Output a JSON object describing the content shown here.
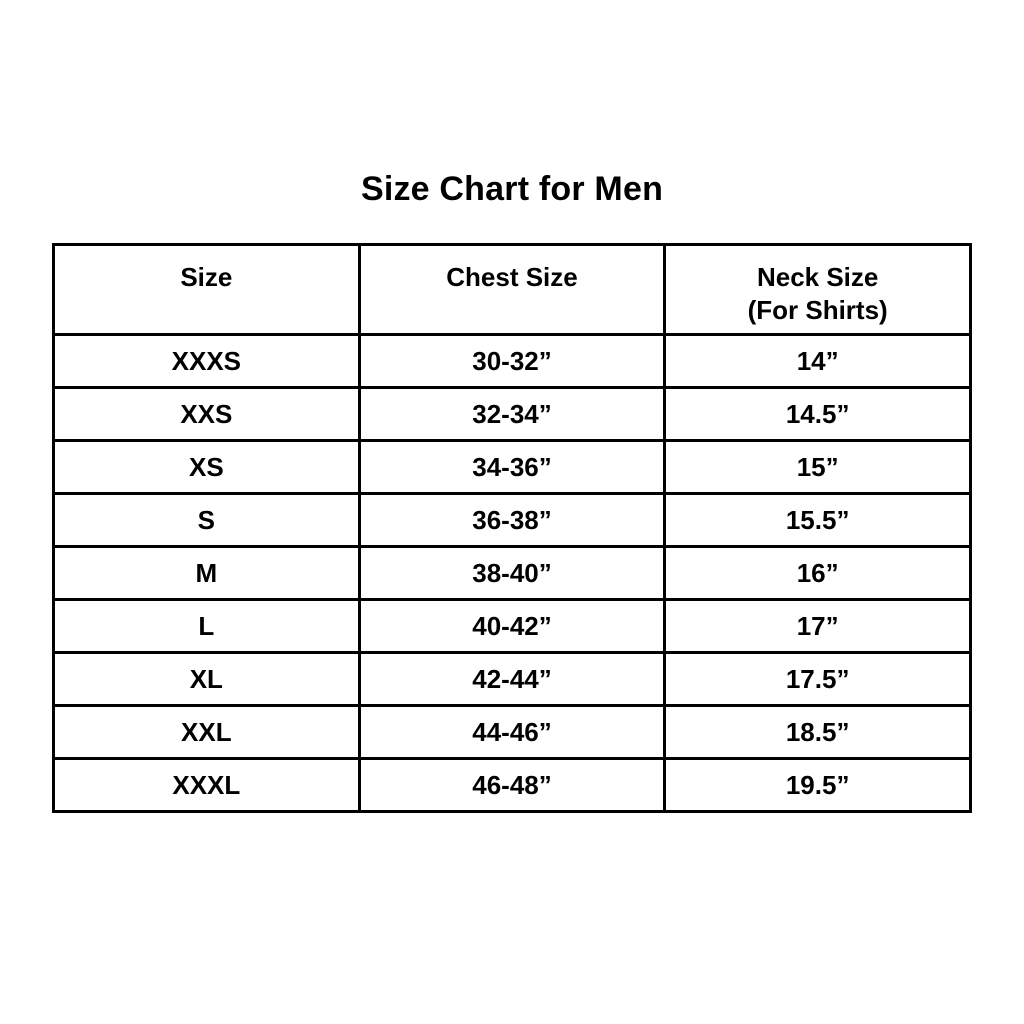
{
  "title": "Size Chart for Men",
  "colors": {
    "background": "#ffffff",
    "text": "#000000",
    "border": "#000000"
  },
  "table": {
    "headers": [
      {
        "label": "Size",
        "sub": ""
      },
      {
        "label": "Chest Size",
        "sub": ""
      },
      {
        "label": "Neck Size",
        "sub": "(For Shirts)"
      }
    ],
    "rows": [
      {
        "size": "XXXS",
        "chest": "30-32”",
        "neck": "14”"
      },
      {
        "size": "XXS",
        "chest": "32-34”",
        "neck": "14.5”"
      },
      {
        "size": "XS",
        "chest": "34-36”",
        "neck": "15”"
      },
      {
        "size": "S",
        "chest": "36-38”",
        "neck": "15.5”"
      },
      {
        "size": "M",
        "chest": "38-40”",
        "neck": "16”"
      },
      {
        "size": "L",
        "chest": "40-42”",
        "neck": "17”"
      },
      {
        "size": "XL",
        "chest": "42-44”",
        "neck": "17.5”"
      },
      {
        "size": "XXL",
        "chest": "44-46”",
        "neck": "18.5”"
      },
      {
        "size": "XXXL",
        "chest": "46-48”",
        "neck": "19.5”"
      }
    ]
  },
  "chart_data": {
    "type": "table",
    "title": "Size Chart for Men",
    "columns": [
      "Size",
      "Chest Size",
      "Neck Size (For Shirts)"
    ],
    "rows": [
      [
        "XXXS",
        "30-32”",
        "14”"
      ],
      [
        "XXS",
        "32-34”",
        "14.5”"
      ],
      [
        "XS",
        "34-36”",
        "15”"
      ],
      [
        "S",
        "36-38”",
        "15.5”"
      ],
      [
        "M",
        "38-40”",
        "16”"
      ],
      [
        "L",
        "40-42”",
        "17”"
      ],
      [
        "XL",
        "42-44”",
        "17.5”"
      ],
      [
        "XXL",
        "44-46”",
        "18.5”"
      ],
      [
        "XXXL",
        "46-48”",
        "19.5”"
      ]
    ]
  }
}
